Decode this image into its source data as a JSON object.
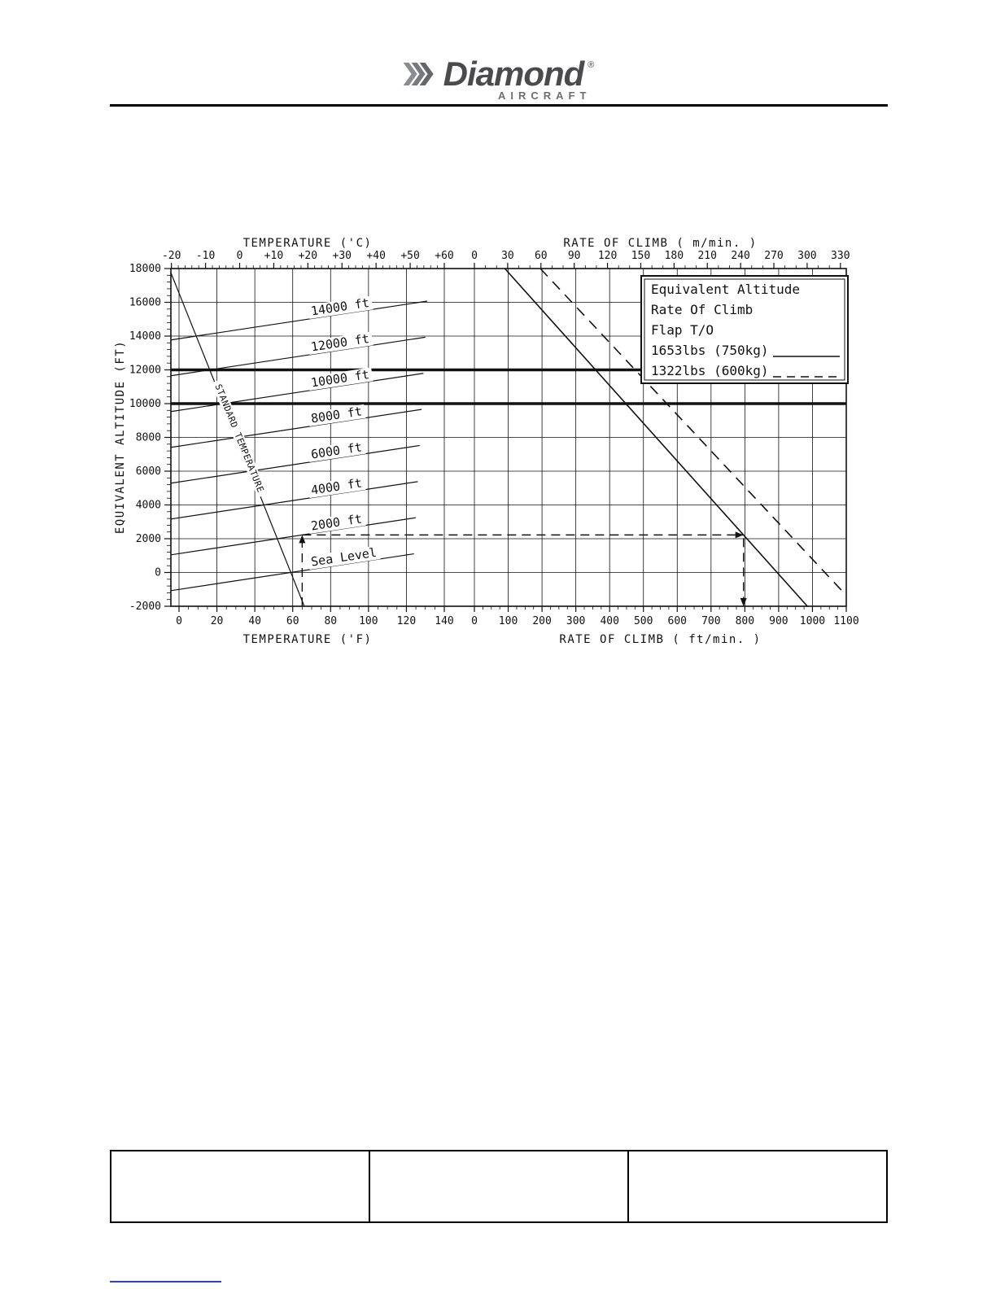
{
  "logo": {
    "brand": "Diamond",
    "registered": "®",
    "sub": "AIRCRAFT"
  },
  "chart_data": {
    "type": "line",
    "title": "Equivalent Altitude / Rate Of Climb - Flap T/O",
    "axes": {
      "temperature_c": {
        "label": "TEMPERATURE ('C)",
        "ticks": [
          {
            "c": -20,
            "label": "-20"
          },
          {
            "c": -10,
            "label": "-10"
          },
          {
            "c": 0,
            "label": "0"
          },
          {
            "c": 10,
            "label": "+10"
          },
          {
            "c": 20,
            "label": "+20"
          },
          {
            "c": 30,
            "label": "+30"
          },
          {
            "c": 40,
            "label": "+40"
          },
          {
            "c": 50,
            "label": "+50"
          },
          {
            "c": 60,
            "label": "+60"
          }
        ]
      },
      "roc_m_min": {
        "label": "RATE OF CLIMB ( m/min. )",
        "ticks": [
          0,
          30,
          60,
          90,
          120,
          150,
          180,
          210,
          240,
          270,
          300,
          330
        ]
      },
      "temperature_f": {
        "label": "TEMPERATURE ('F)",
        "ticks": [
          0,
          20,
          40,
          60,
          80,
          100,
          120,
          140
        ]
      },
      "roc_ft_min": {
        "label": "RATE OF CLIMB ( ft/min. )",
        "ticks": [
          0,
          100,
          200,
          300,
          400,
          500,
          600,
          700,
          800,
          900,
          1000,
          1100
        ]
      },
      "equivalent_altitude": {
        "label": "EQUIVALENT ALTITUDE (FT)",
        "ticks": [
          18000,
          16000,
          14000,
          12000,
          10000,
          8000,
          6000,
          4000,
          2000,
          0,
          -2000
        ],
        "range": [
          -2000,
          18000
        ]
      }
    },
    "legend": {
      "title_lines": [
        "Equivalent Altitude",
        "Rate Of Climb",
        "Flap T/O"
      ],
      "series": [
        {
          "label": "1653lbs (750kg)",
          "style": "solid"
        },
        {
          "label": "1322lbs (600kg)",
          "style": "dashed"
        }
      ]
    },
    "altitude_lines": [
      {
        "label": "Sea Level",
        "pressure_altitude_ft": 0,
        "points": [
          [
            -4.3,
            -1076
          ],
          [
            124,
            1105
          ]
        ]
      },
      {
        "label": "2000 ft",
        "pressure_altitude_ft": 2000,
        "points": [
          [
            -4.3,
            1045
          ],
          [
            125,
            3243
          ]
        ]
      },
      {
        "label": "4000 ft",
        "pressure_altitude_ft": 4000,
        "points": [
          [
            -4.3,
            3166
          ],
          [
            126,
            5381
          ]
        ]
      },
      {
        "label": "6000 ft",
        "pressure_altitude_ft": 6000,
        "points": [
          [
            -4.3,
            5288
          ],
          [
            127,
            7520
          ]
        ]
      },
      {
        "label": "8000 ft",
        "pressure_altitude_ft": 8000,
        "points": [
          [
            -4.3,
            7409
          ],
          [
            128,
            9658
          ]
        ]
      },
      {
        "label": "10000 ft",
        "pressure_altitude_ft": 10000,
        "points": [
          [
            -4.3,
            9530
          ],
          [
            129,
            11796
          ]
        ]
      },
      {
        "label": "12000 ft",
        "pressure_altitude_ft": 12000,
        "points": [
          [
            -4.3,
            11651
          ],
          [
            130,
            13934
          ]
        ]
      },
      {
        "label": "14000 ft",
        "pressure_altitude_ft": 14000,
        "points": [
          [
            -4.3,
            13772
          ],
          [
            131,
            16072
          ]
        ]
      }
    ],
    "standard_temperature_line": {
      "label": "STANDARD TEMPERATURE",
      "points": [
        [
          -4.3,
          17752
        ],
        [
          66,
          -1963
        ]
      ]
    },
    "climb_lines": [
      {
        "label": "1653lbs (750kg)",
        "style": "solid",
        "points_roc_alt": [
          [
            90,
            18000
          ],
          [
            985,
            -2000
          ]
        ]
      },
      {
        "label": "1322lbs (600kg)",
        "style": "dashed",
        "points_roc_alt": [
          [
            195,
            18000
          ],
          [
            1100,
            -1356
          ]
        ]
      }
    ],
    "bold_altitude_lines": [
      12000,
      10000
    ],
    "example": {
      "temperature_f": 65,
      "equivalent_altitude_ft": 2223,
      "rate_of_climb_ft_min": 796
    }
  },
  "footer_table": {
    "cells": [
      "",
      "",
      ""
    ]
  }
}
